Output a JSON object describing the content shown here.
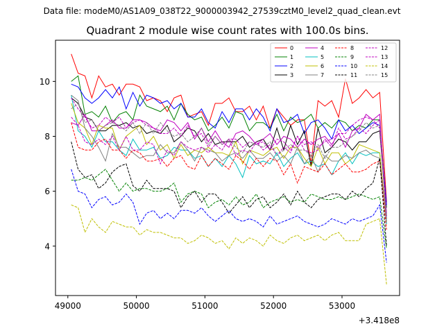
{
  "chart_data": {
    "type": "line",
    "suptitle": "Data file: modeM0/AS1A09_038T22_9000003942_27539cztM0_level2_quad_clean.evt",
    "title": "Quadrant 2 module wise count rates with 100.0s bins.",
    "xlabel": "",
    "ylabel": "",
    "x_offset_label": "+3.418e8",
    "xlim": [
      48820,
      53840
    ],
    "ylim": [
      2.2,
      11.5
    ],
    "xticks": [
      49000,
      50000,
      51000,
      52000,
      53000
    ],
    "xtick_labels": [
      "49000",
      "50000",
      "51000",
      "52000",
      "53000"
    ],
    "yticks": [
      4,
      6,
      8,
      10
    ],
    "ytick_labels": [
      "4",
      "6",
      "8",
      "10"
    ],
    "x": [
      49050,
      49150,
      49250,
      49350,
      49450,
      49550,
      49650,
      49750,
      49850,
      49950,
      50050,
      50150,
      50250,
      50350,
      50450,
      50550,
      50650,
      50750,
      50850,
      50950,
      51050,
      51150,
      51250,
      51350,
      51450,
      51550,
      51650,
      51750,
      51850,
      51950,
      52050,
      52150,
      52250,
      52350,
      52450,
      52550,
      52650,
      52750,
      52850,
      52950,
      53050,
      53150,
      53250,
      53350,
      53450,
      53550,
      53650
    ],
    "legend_position": "top-right",
    "series": [
      {
        "name": "0",
        "color": "#ff0000",
        "dash": "solid",
        "values": [
          11.0,
          10.3,
          10.2,
          9.4,
          10.2,
          9.8,
          9.9,
          9.5,
          9.9,
          9.9,
          9.8,
          9.3,
          9.4,
          9.3,
          8.9,
          9.4,
          9.5,
          8.7,
          8.8,
          8.9,
          8.4,
          9.2,
          9.2,
          9.4,
          8.9,
          8.9,
          9.1,
          8.6,
          9.1,
          8.3,
          9.0,
          8.7,
          8.4,
          8.6,
          8.6,
          7.0,
          9.3,
          9.1,
          9.3,
          8.7,
          10.1,
          9.2,
          9.4,
          9.7,
          9.4,
          9.6,
          5.6
        ]
      },
      {
        "name": "1",
        "color": "#008000",
        "dash": "solid",
        "values": [
          10.0,
          10.2,
          8.8,
          8.9,
          8.7,
          9.1,
          8.5,
          8.8,
          8.9,
          8.6,
          9.5,
          9.1,
          9.0,
          8.9,
          9.1,
          8.6,
          9.2,
          8.8,
          8.6,
          8.7,
          8.2,
          8.4,
          8.7,
          8.3,
          8.9,
          8.8,
          8.2,
          8.5,
          8.5,
          8.3,
          8.8,
          8.2,
          8.7,
          8.5,
          8.6,
          8.8,
          8.3,
          8.5,
          8.3,
          8.6,
          8.5,
          8.2,
          8.4,
          8.3,
          8.6,
          8.6,
          5.4
        ]
      },
      {
        "name": "2",
        "color": "#0000ff",
        "dash": "solid",
        "values": [
          9.9,
          9.8,
          9.4,
          9.2,
          9.4,
          9.7,
          9.4,
          9.8,
          9.0,
          9.6,
          9.1,
          9.5,
          9.4,
          9.2,
          9.3,
          9.0,
          9.2,
          8.7,
          8.7,
          9.0,
          8.5,
          8.3,
          8.9,
          8.5,
          9.0,
          9.0,
          8.6,
          9.0,
          8.7,
          8.2,
          9.0,
          8.5,
          8.6,
          8.8,
          8.1,
          8.5,
          8.6,
          8.3,
          7.9,
          8.6,
          8.2,
          8.4,
          8.1,
          8.3,
          8.5,
          8.4,
          5.5
        ]
      },
      {
        "name": "3",
        "color": "#000000",
        "dash": "solid",
        "values": [
          9.4,
          9.2,
          8.7,
          8.6,
          8.2,
          8.2,
          8.4,
          8.4,
          8.5,
          8.3,
          8.4,
          8.1,
          8.2,
          8.1,
          8.4,
          7.8,
          8.0,
          8.3,
          8.2,
          7.8,
          8.1,
          7.7,
          7.8,
          7.8,
          7.8,
          8.0,
          7.6,
          7.8,
          7.9,
          7.5,
          8.3,
          7.5,
          8.4,
          7.7,
          8.2,
          6.9,
          8.3,
          7.4,
          7.6,
          7.9,
          7.8,
          7.5,
          7.8,
          7.8,
          8.1,
          8.2,
          5.1
        ]
      },
      {
        "name": "4",
        "color": "#bf00bf",
        "dash": "solid",
        "values": [
          8.5,
          8.4,
          8.8,
          8.2,
          8.2,
          8.4,
          8.6,
          8.3,
          8.3,
          8.6,
          8.6,
          8.5,
          8.3,
          8.2,
          8.6,
          8.5,
          8.2,
          8.5,
          7.9,
          8.3,
          7.8,
          8.2,
          7.8,
          7.6,
          8.1,
          8.2,
          8.0,
          7.7,
          7.9,
          8.1,
          7.7,
          8.0,
          7.9,
          7.6,
          7.9,
          7.7,
          7.9,
          8.0,
          7.7,
          8.1,
          7.6,
          8.2,
          8.3,
          8.8,
          8.6,
          8.8,
          5.0
        ]
      },
      {
        "name": "5",
        "color": "#00bfbf",
        "dash": "solid",
        "values": [
          9.5,
          8.2,
          8.0,
          7.6,
          8.2,
          7.8,
          7.8,
          7.5,
          7.3,
          7.9,
          7.5,
          7.5,
          7.6,
          7.2,
          7.3,
          7.6,
          7.5,
          7.5,
          7.2,
          7.3,
          6.9,
          7.2,
          6.9,
          7.3,
          7.0,
          6.5,
          7.3,
          7.0,
          7.1,
          7.0,
          7.4,
          6.9,
          7.2,
          7.4,
          7.0,
          7.1,
          6.9,
          7.0,
          6.6,
          7.1,
          7.4,
          7.0,
          7.4,
          7.3,
          7.4,
          7.4,
          4.8
        ]
      },
      {
        "name": "6",
        "color": "#bfbf00",
        "dash": "solid",
        "values": [
          9.2,
          8.5,
          8.3,
          7.7,
          8.4,
          8.3,
          8.3,
          7.5,
          8.0,
          8.2,
          8.4,
          7.7,
          8.0,
          7.5,
          7.7,
          7.2,
          7.7,
          7.3,
          7.5,
          7.4,
          7.6,
          7.4,
          7.4,
          7.3,
          7.8,
          7.0,
          7.5,
          7.4,
          7.3,
          7.5,
          7.6,
          7.2,
          7.6,
          7.6,
          7.2,
          6.9,
          7.6,
          7.0,
          7.4,
          7.4,
          7.0,
          7.2,
          7.7,
          7.6,
          7.5,
          7.4,
          4.9
        ]
      },
      {
        "name": "7",
        "color": "#808080",
        "dash": "solid",
        "values": [
          9.5,
          9.3,
          8.3,
          8.0,
          7.6,
          7.1,
          8.1,
          7.6,
          7.6,
          7.4,
          7.2,
          7.3,
          7.3,
          7.7,
          7.4,
          7.4,
          7.8,
          7.5,
          7.1,
          7.6,
          7.5,
          7.4,
          7.1,
          7.3,
          7.4,
          7.2,
          7.5,
          7.2,
          7.2,
          7.4,
          7.1,
          7.3,
          7.0,
          7.6,
          7.0,
          7.3,
          6.7,
          7.3,
          7.1,
          7.1,
          7.3,
          7.2,
          7.4,
          7.5,
          7.3,
          7.2,
          4.9
        ]
      },
      {
        "name": "8",
        "color": "#ff0000",
        "dash": "dashed",
        "values": [
          8.5,
          7.6,
          7.5,
          7.5,
          7.8,
          7.9,
          7.5,
          7.5,
          7.2,
          7.5,
          7.4,
          7.1,
          7.1,
          7.2,
          6.9,
          7.2,
          7.3,
          6.9,
          6.8,
          7.3,
          6.9,
          7.2,
          7.0,
          6.8,
          7.3,
          7.1,
          6.8,
          7.2,
          6.9,
          7.2,
          7.1,
          6.6,
          7.0,
          6.3,
          6.9,
          6.8,
          6.7,
          7.0,
          6.6,
          6.8,
          7.0,
          6.7,
          6.7,
          6.8,
          7.0,
          7.1,
          4.6
        ]
      },
      {
        "name": "9",
        "color": "#008000",
        "dash": "dashed",
        "values": [
          6.4,
          6.4,
          6.5,
          6.4,
          6.6,
          6.8,
          6.4,
          6.0,
          6.3,
          6.0,
          6.1,
          6.1,
          6.0,
          6.0,
          6.1,
          6.3,
          5.6,
          5.9,
          6.0,
          5.9,
          5.4,
          5.6,
          5.7,
          5.5,
          5.8,
          5.5,
          5.6,
          5.9,
          5.4,
          5.6,
          5.7,
          5.8,
          5.6,
          5.7,
          5.6,
          5.9,
          5.8,
          5.7,
          5.7,
          5.8,
          5.7,
          5.8,
          5.9,
          5.8,
          5.7,
          5.8,
          3.9
        ]
      },
      {
        "name": "10",
        "color": "#0000ff",
        "dash": "dashed",
        "values": [
          6.8,
          6.0,
          5.9,
          5.4,
          5.7,
          5.8,
          5.5,
          5.6,
          5.9,
          5.6,
          4.8,
          5.2,
          5.3,
          5.0,
          5.2,
          5.0,
          5.3,
          5.3,
          5.2,
          5.4,
          5.1,
          4.9,
          5.1,
          5.3,
          5.0,
          4.9,
          5.0,
          4.9,
          4.7,
          5.1,
          4.8,
          4.9,
          5.0,
          5.1,
          4.9,
          4.8,
          4.7,
          4.8,
          5.0,
          4.9,
          4.8,
          5.0,
          4.9,
          5.0,
          5.1,
          5.5,
          3.4
        ]
      },
      {
        "name": "11",
        "color": "#000000",
        "dash": "dashed",
        "values": [
          7.8,
          6.8,
          6.5,
          6.6,
          6.1,
          6.3,
          6.7,
          6.9,
          7.0,
          6.2,
          6.0,
          6.4,
          6.1,
          6.1,
          6.1,
          6.0,
          5.4,
          5.8,
          6.0,
          5.6,
          5.9,
          5.9,
          5.6,
          5.2,
          5.5,
          5.8,
          5.4,
          5.7,
          5.8,
          5.4,
          5.6,
          5.9,
          5.5,
          6.0,
          5.6,
          5.4,
          5.7,
          5.8,
          5.9,
          5.9,
          5.7,
          6.0,
          5.8,
          6.1,
          6.3,
          7.2,
          4.0
        ]
      },
      {
        "name": "12",
        "color": "#bf00bf",
        "dash": "dashed",
        "values": [
          9.4,
          9.0,
          8.7,
          8.3,
          8.4,
          8.7,
          8.5,
          8.7,
          8.3,
          8.5,
          8.6,
          8.4,
          8.3,
          8.1,
          8.1,
          8.3,
          8.0,
          8.4,
          8.0,
          8.1,
          7.6,
          8.0,
          7.7,
          7.9,
          7.9,
          7.6,
          7.8,
          7.7,
          7.8,
          7.5,
          7.9,
          7.8,
          7.5,
          8.0,
          7.7,
          7.8,
          7.6,
          7.8,
          7.9,
          8.1,
          8.1,
          8.4,
          8.6,
          8.7,
          8.6,
          8.3,
          5.0
        ]
      },
      {
        "name": "13",
        "color": "#bf00bf",
        "dash": "dashed",
        "values": [
          8.7,
          8.4,
          7.8,
          7.7,
          7.9,
          7.7,
          8.0,
          7.5,
          8.0,
          7.5,
          7.5,
          7.8,
          7.7,
          7.0,
          7.5,
          7.3,
          7.8,
          7.6,
          7.5,
          7.6,
          7.4,
          7.7,
          7.5,
          7.9,
          7.3,
          7.5,
          7.4,
          7.8,
          7.5,
          7.7,
          7.3,
          7.6,
          7.4,
          8.0,
          7.5,
          7.4,
          7.5,
          7.9,
          7.6,
          8.3,
          7.9,
          8.0,
          8.3,
          8.1,
          8.4,
          8.6,
          5.2
        ]
      },
      {
        "name": "14",
        "color": "#bfbf00",
        "dash": "dashed",
        "values": [
          5.5,
          5.4,
          4.5,
          5.0,
          4.7,
          4.5,
          4.9,
          4.8,
          4.7,
          4.7,
          4.4,
          4.6,
          4.5,
          4.5,
          4.4,
          4.3,
          4.3,
          4.1,
          4.2,
          4.4,
          4.3,
          4.1,
          4.2,
          3.9,
          4.3,
          4.1,
          4.3,
          4.2,
          4.0,
          4.4,
          4.2,
          4.1,
          4.3,
          4.4,
          4.2,
          4.3,
          4.4,
          4.2,
          4.4,
          4.5,
          4.2,
          4.2,
          4.2,
          4.8,
          4.9,
          5.0,
          2.6
        ]
      },
      {
        "name": "15",
        "color": "#808080",
        "dash": "dashed",
        "values": [
          9.0,
          9.2,
          8.5,
          8.6,
          8.2,
          8.4,
          8.5,
          8.4,
          8.2,
          8.5,
          8.1,
          8.5,
          8.1,
          8.5,
          8.2,
          8.0,
          8.1,
          7.8,
          8.0,
          8.3,
          7.7,
          8.0,
          7.7,
          7.9,
          7.6,
          7.4,
          7.8,
          7.7,
          7.6,
          7.8,
          7.3,
          7.5,
          7.7,
          7.5,
          7.5,
          7.3,
          7.7,
          7.2,
          7.6,
          7.6,
          7.8,
          8.0,
          8.2,
          8.5,
          8.3,
          8.4,
          5.0
        ]
      }
    ]
  }
}
